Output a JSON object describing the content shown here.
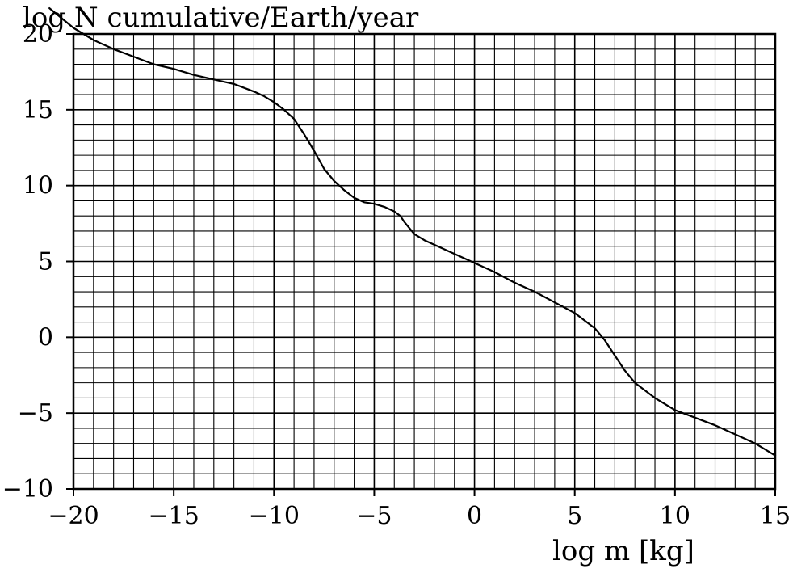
{
  "chart_data": {
    "type": "line",
    "title": "",
    "ylabel": "log N cumulative/Earth/year",
    "xlabel": "log m [kg]",
    "xlim": [
      -20,
      15
    ],
    "ylim": [
      -10,
      20
    ],
    "x_ticks": [
      -20,
      -15,
      -10,
      -5,
      0,
      5,
      10,
      15
    ],
    "y_ticks": [
      -10,
      -5,
      0,
      5,
      10,
      15,
      20
    ],
    "x_tick_labels": [
      "−20",
      "−15",
      "−10",
      "−5",
      "0",
      "5",
      "10",
      "15"
    ],
    "y_tick_labels": [
      "−10",
      "−5",
      "0",
      "5",
      "10",
      "15",
      "20"
    ],
    "grid": true,
    "grid_minor_x": 1,
    "grid_minor_y": 1,
    "series": [
      {
        "x": [
          -21.2,
          -20,
          -19,
          -18,
          -17,
          -16,
          -15,
          -14,
          -13,
          -12,
          -11,
          -10.5,
          -10,
          -9.5,
          -9,
          -8.5,
          -8,
          -7.5,
          -7,
          -6.5,
          -6,
          -5.5,
          -5,
          -4.5,
          -4,
          -3.7,
          -3.5,
          -3,
          -2.5,
          -2,
          -1,
          0,
          1,
          2,
          3,
          4,
          5,
          5.5,
          6,
          6.5,
          7,
          7.5,
          8,
          9,
          10,
          11,
          12,
          13,
          14,
          15
        ],
        "y": [
          21.7,
          20.4,
          19.6,
          19.0,
          18.5,
          18.0,
          17.7,
          17.3,
          17.0,
          16.7,
          16.2,
          15.9,
          15.5,
          15.0,
          14.4,
          13.4,
          12.3,
          11.1,
          10.3,
          9.7,
          9.2,
          8.9,
          8.8,
          8.6,
          8.3,
          8.0,
          7.6,
          6.8,
          6.4,
          6.1,
          5.5,
          4.9,
          4.3,
          3.6,
          3.0,
          2.3,
          1.6,
          1.1,
          0.6,
          -0.2,
          -1.2,
          -2.2,
          -3.0,
          -4.0,
          -4.8,
          -5.3,
          -5.8,
          -6.4,
          -7.0,
          -7.8
        ]
      }
    ]
  }
}
